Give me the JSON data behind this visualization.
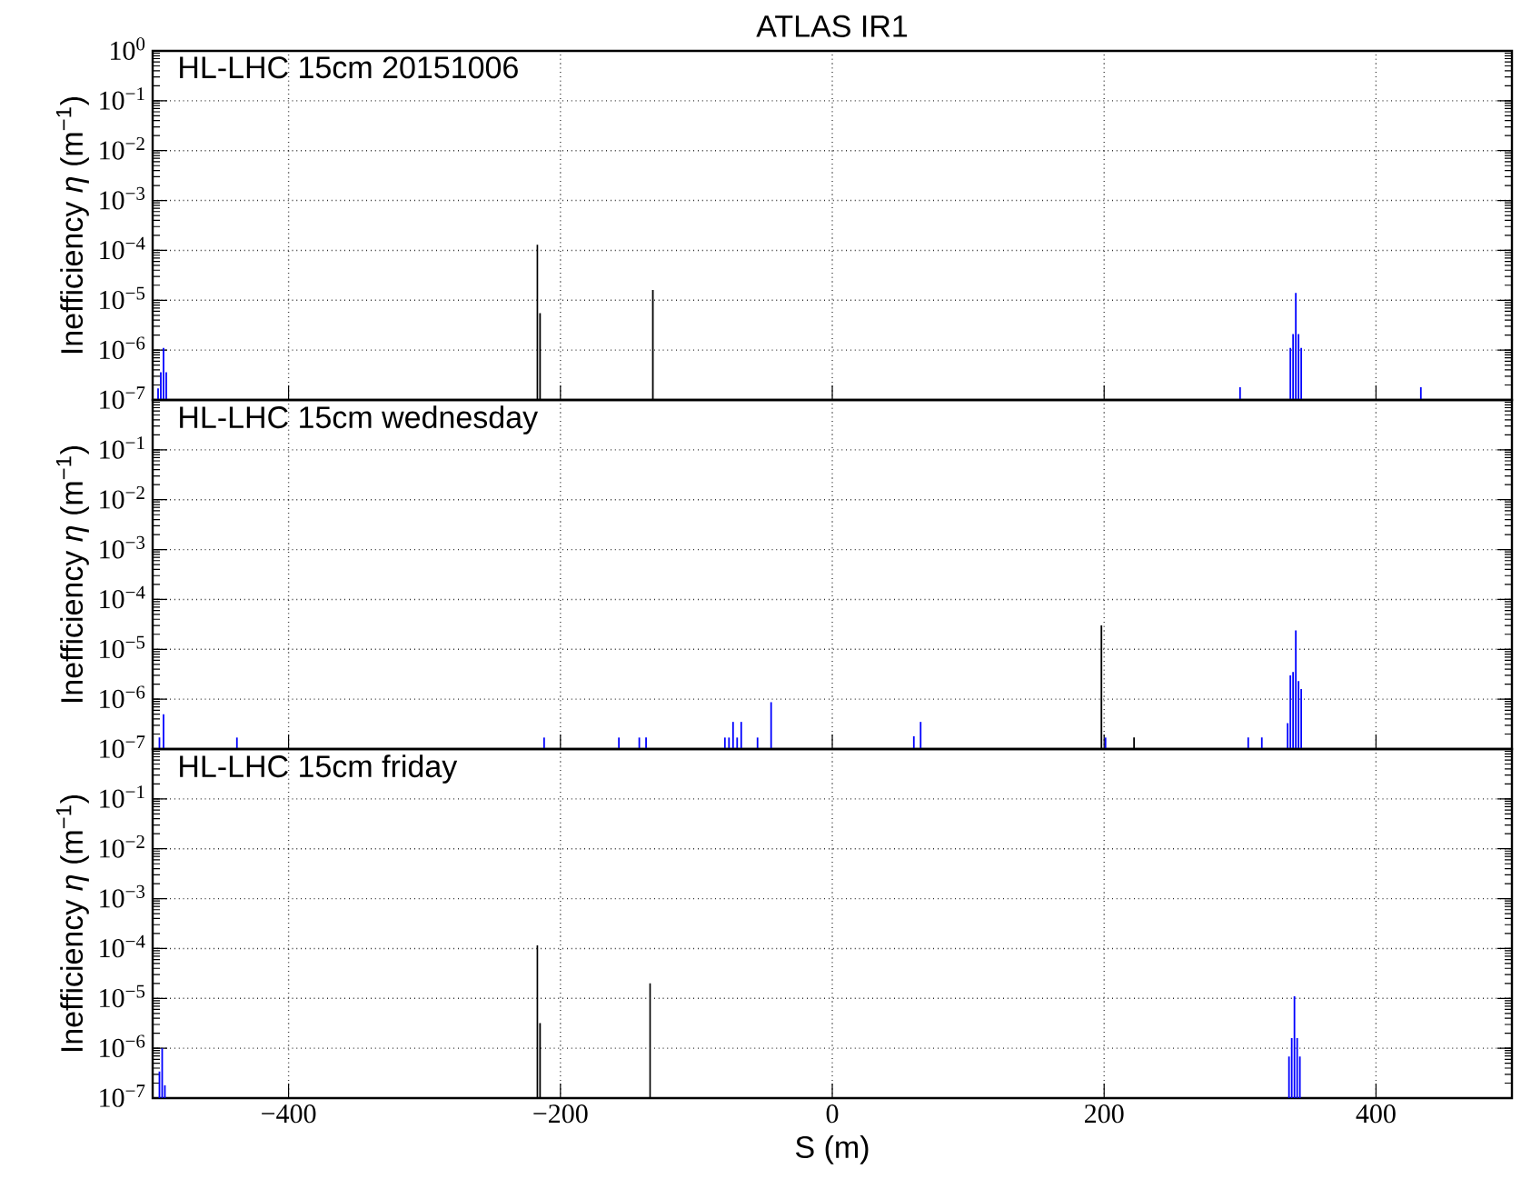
{
  "chart_data": [
    {
      "type": "bar",
      "title": "ATLAS IR1",
      "ylabel": "Inefficiency *η* (m$^{−1}$)",
      "annotations": [
        "HL-LHC 15cm 20151006"
      ],
      "log": true,
      "grid": true,
      "tick_labels": "y",
      "xlim": [
        -500,
        500
      ],
      "xticks": [
        -400,
        -200,
        0,
        200,
        400
      ],
      "ylim": [
        1e-07,
        1
      ],
      "yticks": [
        {
          "value": 1e-07,
          "label": "10$^{−7}$"
        },
        {
          "value": 1e-06,
          "label": "10$^{−6}$"
        },
        {
          "value": 1e-05,
          "label": "10$^{−5}$"
        },
        {
          "value": 0.0001,
          "label": "10$^{−4}$"
        },
        {
          "value": 0.001,
          "label": "10$^{−3}$"
        },
        {
          "value": 0.01,
          "label": "10$^{−2}$"
        },
        {
          "value": 0.1,
          "label": "10$^{−1}$"
        },
        {
          "value": 1,
          "label": "10$^{0}$"
        }
      ],
      "series": [
        {
          "color": "#000000",
          "x": [
            -217,
            -215,
            -132
          ],
          "values": [
            0.00013,
            5.5e-06,
            1.6e-05
          ]
        },
        {
          "color": "#0000ff",
          "x": [
            -496,
            -494,
            -492,
            -490,
            300,
            337,
            339,
            341,
            343,
            345,
            433
          ],
          "values": [
            1.7e-07,
            3.6e-07,
            1.1e-06,
            3.6e-07,
            1.8e-07,
            1.1e-06,
            2.1e-06,
            1.4e-05,
            2.1e-06,
            1.1e-06,
            1.8e-07
          ]
        }
      ]
    },
    {
      "type": "bar",
      "ylabel": "Inefficiency *η* (m$^{−1}$)",
      "annotations": [
        "HL-LHC 15cm wednesday"
      ],
      "log": true,
      "grid": true,
      "tick_labels": "y",
      "xlim": [
        -500,
        500
      ],
      "xticks": [
        -400,
        -200,
        0,
        200,
        400
      ],
      "ylim": [
        1e-07,
        1
      ],
      "yticks": [
        {
          "value": 1e-07,
          "label": "10$^{−7}$"
        },
        {
          "value": 1e-06,
          "label": "10$^{−6}$"
        },
        {
          "value": 1e-05,
          "label": "10$^{−5}$"
        },
        {
          "value": 0.0001,
          "label": "10$^{−4}$"
        },
        {
          "value": 0.001,
          "label": "10$^{−3}$"
        },
        {
          "value": 0.01,
          "label": "10$^{−2}$"
        },
        {
          "value": 0.1,
          "label": "10$^{−1}$"
        },
        {
          "value": 1,
          "label": null
        }
      ],
      "series": [
        {
          "color": "#000000",
          "x": [
            198,
            222
          ],
          "values": [
            3e-05,
            1.7e-07
          ]
        },
        {
          "color": "#0000ff",
          "x": [
            -495,
            -492,
            -438,
            -212,
            -157,
            -142,
            -137,
            -79,
            -76,
            -73,
            -70,
            -67,
            -55,
            -45,
            60,
            65,
            201,
            306,
            316,
            335,
            337,
            339,
            341,
            343,
            345
          ],
          "values": [
            1.7e-07,
            5e-07,
            1.7e-07,
            1.7e-07,
            1.7e-07,
            1.7e-07,
            1.7e-07,
            1.7e-07,
            1.7e-07,
            3.5e-07,
            1.7e-07,
            3.5e-07,
            1.7e-07,
            8.7e-07,
            1.8e-07,
            3.5e-07,
            1.7e-07,
            1.7e-07,
            1.7e-07,
            3.3e-07,
            3e-06,
            3.5e-06,
            2.4e-05,
            2.3e-06,
            1.6e-06
          ]
        }
      ]
    },
    {
      "type": "bar",
      "xlabel": "S (m)",
      "ylabel": "Inefficiency *η* (m$^{−1}$)",
      "annotations": [
        "HL-LHC 15cm friday"
      ],
      "log": true,
      "grid": true,
      "xlim": [
        -500,
        500
      ],
      "xticks": [
        {
          "value": -400,
          "label": "−400"
        },
        {
          "value": -200,
          "label": "−200"
        },
        0,
        200,
        400
      ],
      "ylim": [
        1e-07,
        1
      ],
      "yticks": [
        {
          "value": 1e-07,
          "label": "10$^{−7}$"
        },
        {
          "value": 1e-06,
          "label": "10$^{−6}$"
        },
        {
          "value": 1e-05,
          "label": "10$^{−5}$"
        },
        {
          "value": 0.0001,
          "label": "10$^{−4}$"
        },
        {
          "value": 0.001,
          "label": "10$^{−3}$"
        },
        {
          "value": 0.01,
          "label": "10$^{−2}$"
        },
        {
          "value": 0.1,
          "label": "10$^{−1}$"
        },
        {
          "value": 1,
          "label": null
        }
      ],
      "series": [
        {
          "color": "#000000",
          "x": [
            -217,
            -215,
            -134
          ],
          "values": [
            0.000115,
            3.2e-06,
            2e-05
          ]
        },
        {
          "color": "#0000ff",
          "x": [
            -495,
            -493,
            -491,
            336,
            338,
            340,
            342,
            344
          ],
          "values": [
            3.4e-07,
            1e-06,
            1.8e-07,
            6.8e-07,
            1.6e-06,
            1.1e-05,
            1.6e-06,
            6.8e-07
          ]
        }
      ]
    }
  ]
}
